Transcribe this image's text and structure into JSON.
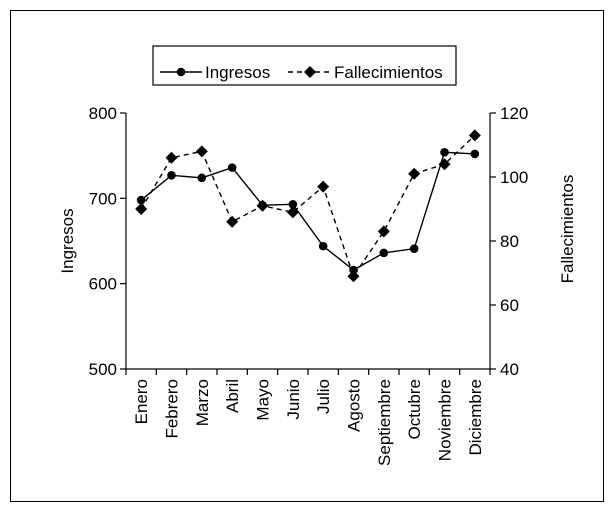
{
  "chart_data": {
    "type": "line",
    "categories": [
      "Enero",
      "Febrero",
      "Marzo",
      "Abril",
      "Mayo",
      "Junio",
      "Julio",
      "Agosto",
      "Septiembre",
      "Octubre",
      "Noviembre",
      "Diciembre"
    ],
    "series": [
      {
        "name": "Ingresos",
        "axis": "left",
        "style": "solid",
        "marker": "circle",
        "values": [
          698,
          727,
          724,
          736,
          692,
          693,
          644,
          616,
          636,
          641,
          754,
          752
        ]
      },
      {
        "name": "Fallecimientos",
        "axis": "right",
        "style": "dashed",
        "marker": "diamond",
        "values": [
          90,
          106,
          108,
          86,
          91,
          89,
          97,
          69,
          83,
          101,
          104,
          113
        ]
      }
    ],
    "ylabel": "Ingresos",
    "y2label": "Fallecimientos",
    "ylim": [
      500,
      800
    ],
    "y2lim": [
      40,
      120
    ],
    "yticks": [
      "500",
      "600",
      "700",
      "800"
    ],
    "y2ticks": [
      "40",
      "60",
      "80",
      "100",
      "120"
    ],
    "legend_position": "top-center",
    "grid": false
  }
}
